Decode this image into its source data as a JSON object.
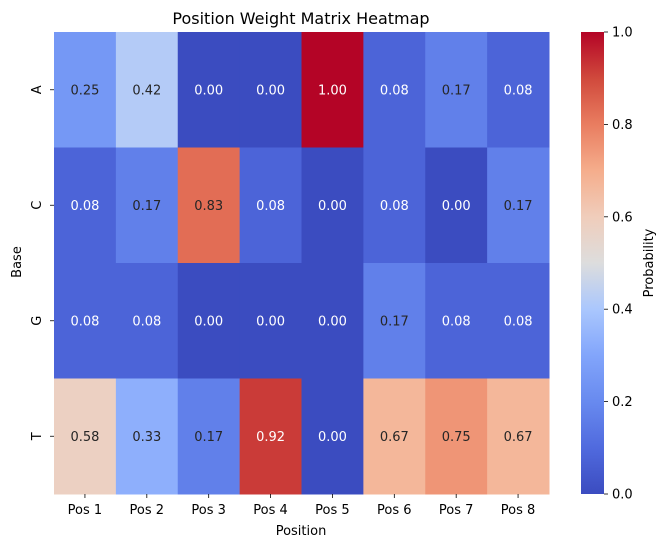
{
  "chart_data": {
    "type": "heatmap",
    "title": "Position Weight Matrix Heatmap",
    "xlabel": "Position",
    "ylabel": "Base",
    "x_categories": [
      "Pos 1",
      "Pos 2",
      "Pos 3",
      "Pos 4",
      "Pos 5",
      "Pos 6",
      "Pos 7",
      "Pos 8"
    ],
    "y_categories": [
      "A",
      "C",
      "G",
      "T"
    ],
    "values": [
      [
        0.25,
        0.42,
        0.0,
        0.0,
        1.0,
        0.08,
        0.17,
        0.08
      ],
      [
        0.08,
        0.17,
        0.83,
        0.08,
        0.0,
        0.08,
        0.0,
        0.17
      ],
      [
        0.08,
        0.08,
        0.0,
        0.0,
        0.0,
        0.17,
        0.08,
        0.08
      ],
      [
        0.58,
        0.33,
        0.17,
        0.92,
        0.0,
        0.67,
        0.75,
        0.67
      ]
    ],
    "value_labels": [
      [
        "0.25",
        "0.42",
        "0.00",
        "0.00",
        "1.00",
        "0.08",
        "0.17",
        "0.08"
      ],
      [
        "0.08",
        "0.17",
        "0.83",
        "0.08",
        "0.00",
        "0.08",
        "0.00",
        "0.17"
      ],
      [
        "0.08",
        "0.08",
        "0.00",
        "0.00",
        "0.00",
        "0.17",
        "0.08",
        "0.08"
      ],
      [
        "0.58",
        "0.33",
        "0.17",
        "0.92",
        "0.00",
        "0.67",
        "0.75",
        "0.67"
      ]
    ],
    "colormap": "coolwarm",
    "colorbar": {
      "label": "Probability",
      "vmin": 0.0,
      "vmax": 1.0,
      "ticks": [
        0.0,
        0.2,
        0.4,
        0.6,
        0.8,
        1.0
      ],
      "tick_labels": [
        "0.0",
        "0.2",
        "0.4",
        "0.6",
        "0.8",
        "1.0"
      ]
    },
    "colors": {
      "low": "#3b4cc0",
      "mid": "#dddddd",
      "high": "#b40426"
    },
    "grid": false
  }
}
